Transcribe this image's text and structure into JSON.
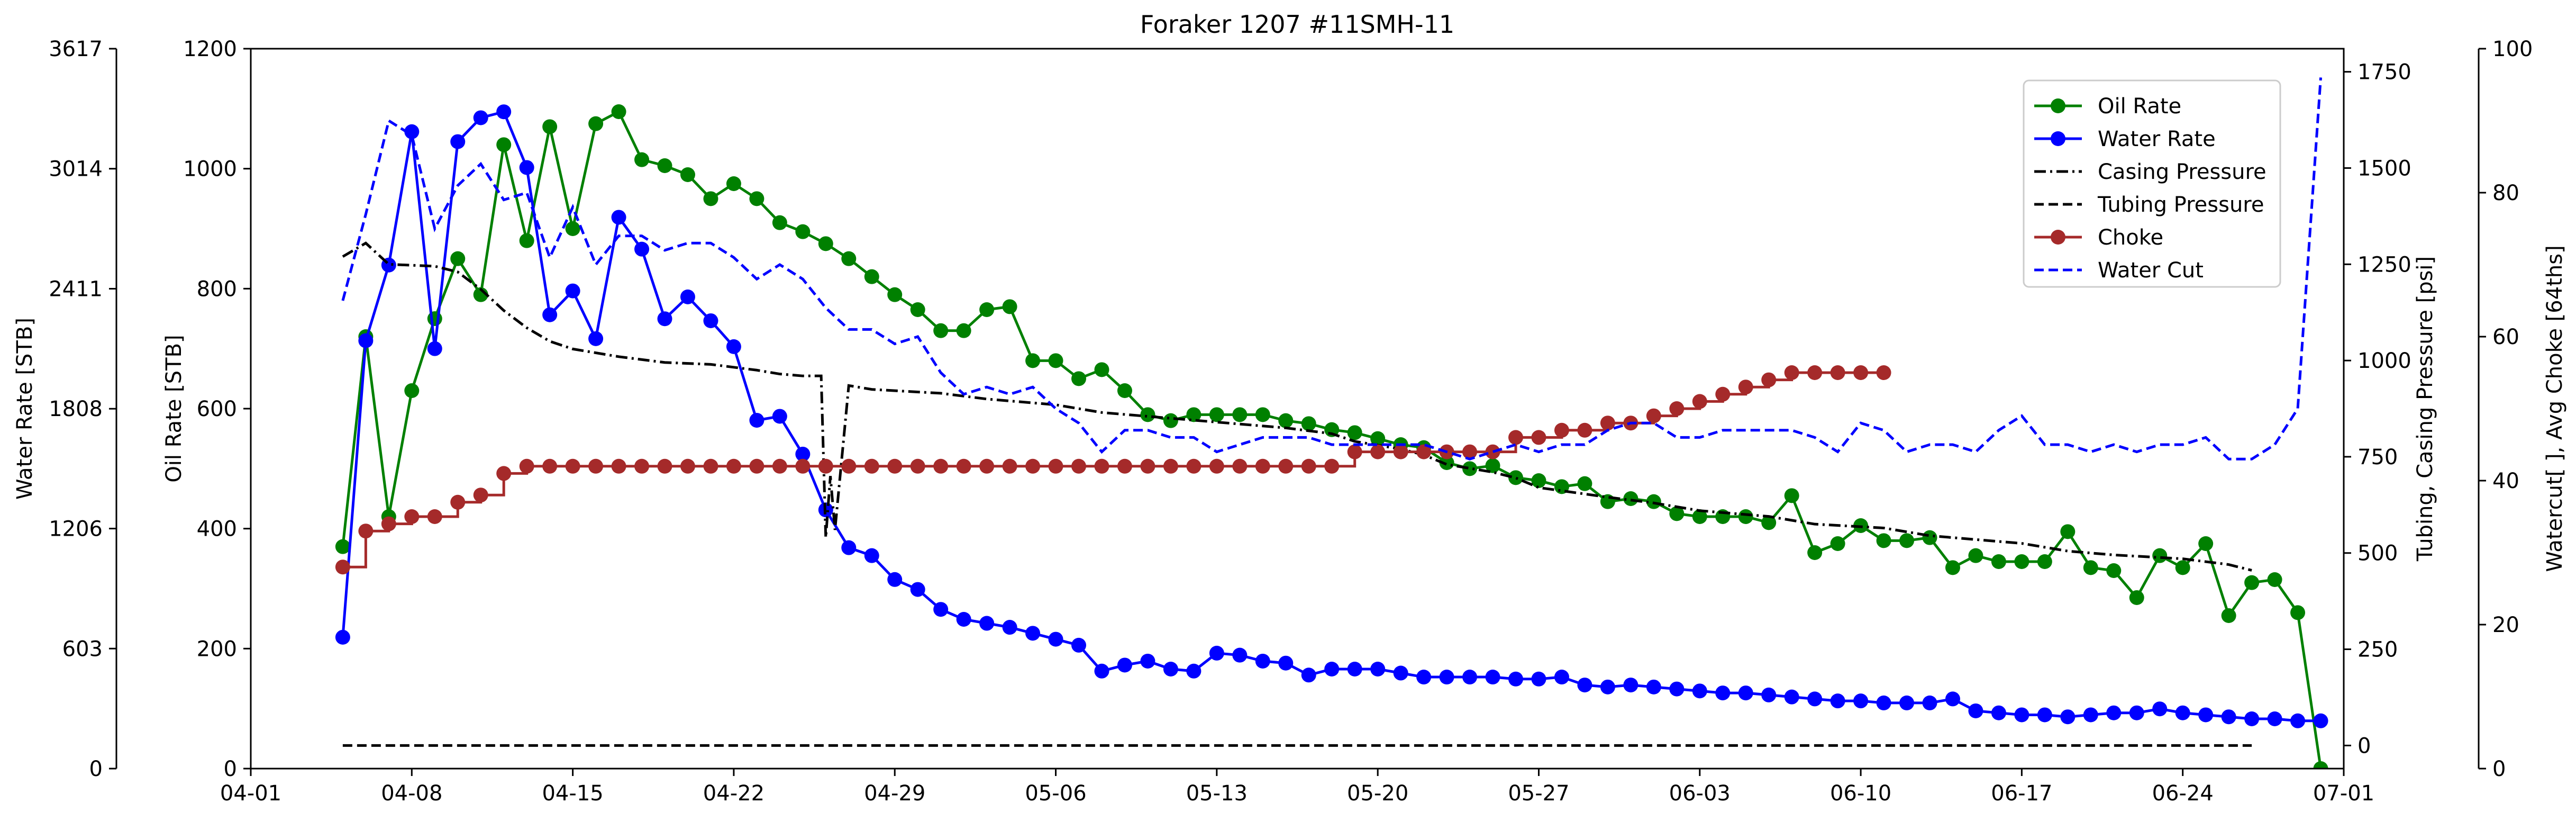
{
  "chart_data": {
    "type": "line",
    "title": "Foraker 1207 #11SMH-11",
    "x_axis": {
      "start": "2019-04-01",
      "end": "2019-07-01",
      "tick_dates": [
        "2019-04-01",
        "2019-04-08",
        "2019-04-15",
        "2019-04-22",
        "2019-04-29",
        "2019-05-06",
        "2019-05-13",
        "2019-05-20",
        "2019-05-27",
        "2019-06-03",
        "2019-06-10",
        "2019-06-17",
        "2019-06-24",
        "2019-07-01"
      ],
      "tick_labels": [
        "04-01",
        "04-08",
        "04-15",
        "04-22",
        "04-29",
        "05-06",
        "05-13",
        "05-20",
        "05-27",
        "06-03",
        "06-10",
        "06-17",
        "06-24",
        "07-01"
      ]
    },
    "axes": {
      "water_rate": {
        "label": "Water Rate [STB]",
        "ylim": [
          0,
          3617
        ],
        "ticks": [
          "0",
          "603",
          "1206",
          "1808",
          "2411",
          "3014",
          "3617"
        ]
      },
      "oil_rate": {
        "label": "Oil Rate [STB]",
        "ylim": [
          0,
          1200
        ],
        "ticks": [
          "0",
          "200",
          "400",
          "600",
          "800",
          "1000",
          "1200"
        ]
      },
      "pressure": {
        "label": "Tubing, Casing Pressure [psi]",
        "ylim": [
          -60,
          1810
        ],
        "ticks": [
          "0",
          "250",
          "500",
          "750",
          "1000",
          "1250",
          "1500",
          "1750"
        ]
      },
      "watercut_choke": {
        "label": "Watercut[ ], Avg Choke [64ths]",
        "ylim": [
          0,
          100
        ],
        "ticks": [
          "0",
          "20",
          "40",
          "60",
          "80",
          "100"
        ]
      }
    },
    "legend": {
      "position": "top-right",
      "entries": [
        "Oil Rate",
        "Water Rate",
        "Casing Pressure",
        "Tubing Pressure",
        "Choke",
        "Water Cut"
      ]
    },
    "colors": {
      "oil": "#008000",
      "water": "#0000ff",
      "pressure": "#000000",
      "choke": "#a52a2a",
      "water_cut": "#0000ff"
    },
    "series": [
      {
        "name": "Oil Rate",
        "axis": "oil_rate",
        "style": "solid-marker",
        "color": "#008000",
        "start": "2019-04-05",
        "values": [
          370,
          720,
          420,
          630,
          750,
          850,
          790,
          1040,
          880,
          1070,
          900,
          1075,
          1095,
          1015,
          1005,
          990,
          950,
          975,
          950,
          910,
          895,
          875,
          850,
          820,
          790,
          765,
          730,
          730,
          765,
          770,
          680,
          680,
          650,
          665,
          630,
          590,
          580,
          590,
          590,
          590,
          590,
          580,
          575,
          565,
          560,
          550,
          540,
          535,
          510,
          500,
          505,
          485,
          480,
          470,
          475,
          445,
          450,
          445,
          425,
          420,
          420,
          420,
          410,
          455,
          360,
          375,
          405,
          380,
          380,
          385,
          335,
          355,
          345,
          345,
          345,
          395,
          335,
          330,
          285,
          355,
          335,
          375,
          255,
          310,
          315,
          260,
          0
        ]
      },
      {
        "name": "Water Rate",
        "axis": "water_rate",
        "style": "solid-marker",
        "color": "#0000ff",
        "start": "2019-04-05",
        "values": [
          660,
          2150,
          2530,
          3200,
          2110,
          3150,
          3270,
          3300,
          3020,
          2280,
          2400,
          2160,
          2770,
          2610,
          2260,
          2370,
          2250,
          2120,
          1750,
          1770,
          1580,
          1300,
          1110,
          1070,
          950,
          900,
          800,
          750,
          730,
          710,
          680,
          650,
          620,
          490,
          520,
          540,
          500,
          490,
          580,
          570,
          540,
          530,
          470,
          500,
          500,
          500,
          480,
          460,
          460,
          460,
          460,
          450,
          450,
          460,
          420,
          410,
          420,
          410,
          400,
          390,
          380,
          380,
          370,
          360,
          350,
          340,
          340,
          330,
          330,
          330,
          350,
          290,
          280,
          270,
          270,
          260,
          270,
          280,
          280,
          300,
          280,
          270,
          260,
          250,
          250,
          240,
          240
        ]
      },
      {
        "name": "Casing Pressure",
        "axis": "pressure",
        "style": "dashdot",
        "color": "#000000",
        "points": [
          [
            "2019-04-05",
            1270
          ],
          [
            "2019-04-06",
            1305
          ],
          [
            "2019-04-07",
            1250
          ],
          [
            "2019-04-09",
            1245
          ],
          [
            "2019-04-10",
            1230
          ],
          [
            "2019-04-11",
            1185
          ],
          [
            "2019-04-12",
            1130
          ],
          [
            "2019-04-13",
            1085
          ],
          [
            "2019-04-14",
            1050
          ],
          [
            "2019-04-15",
            1030
          ],
          [
            "2019-04-17",
            1010
          ],
          [
            "2019-04-19",
            995
          ],
          [
            "2019-04-21",
            990
          ],
          [
            "2019-04-23",
            975
          ],
          [
            "2019-04-24",
            965
          ],
          [
            "2019-04-25",
            960
          ],
          [
            "2019-04-25.8",
            960
          ],
          [
            "2019-04-26",
            540
          ],
          [
            "2019-04-26.2",
            700
          ],
          [
            "2019-04-26.4",
            560
          ],
          [
            "2019-04-27",
            935
          ],
          [
            "2019-04-28",
            925
          ],
          [
            "2019-05-01",
            915
          ],
          [
            "2019-05-03",
            900
          ],
          [
            "2019-05-06",
            885
          ],
          [
            "2019-05-08",
            865
          ],
          [
            "2019-05-10",
            855
          ],
          [
            "2019-05-12",
            845
          ],
          [
            "2019-05-14",
            835
          ],
          [
            "2019-05-16",
            825
          ],
          [
            "2019-05-18",
            810
          ],
          [
            "2019-05-19",
            790
          ],
          [
            "2019-05-21",
            770
          ],
          [
            "2019-05-22",
            755
          ],
          [
            "2019-05-23",
            730
          ],
          [
            "2019-05-25",
            710
          ],
          [
            "2019-05-26",
            695
          ],
          [
            "2019-05-27",
            670
          ],
          [
            "2019-05-30",
            645
          ],
          [
            "2019-06-01",
            630
          ],
          [
            "2019-06-03",
            610
          ],
          [
            "2019-06-06",
            595
          ],
          [
            "2019-06-08",
            575
          ],
          [
            "2019-06-11",
            565
          ],
          [
            "2019-06-13",
            545
          ],
          [
            "2019-06-15",
            535
          ],
          [
            "2019-06-17",
            525
          ],
          [
            "2019-06-19",
            505
          ],
          [
            "2019-06-21",
            495
          ],
          [
            "2019-06-24",
            485
          ],
          [
            "2019-06-26",
            470
          ],
          [
            "2019-06-27",
            455
          ]
        ]
      },
      {
        "name": "Tubing Pressure",
        "axis": "pressure",
        "style": "dashed",
        "color": "#000000",
        "points": [
          [
            "2019-04-05",
            0
          ],
          [
            "2019-06-27",
            0
          ]
        ]
      },
      {
        "name": "Choke",
        "axis": "watercut_choke",
        "style": "step-marker",
        "color": "#a52a2a",
        "start": "2019-04-05",
        "values": [
          28,
          33,
          34,
          35,
          35,
          37,
          38,
          41,
          42,
          42,
          42,
          42,
          42,
          42,
          42,
          42,
          42,
          42,
          42,
          42,
          42,
          42,
          42,
          42,
          42,
          42,
          42,
          42,
          42,
          42,
          42,
          42,
          42,
          42,
          42,
          42,
          42,
          42,
          42,
          42,
          42,
          42,
          42,
          42,
          44,
          44,
          44,
          44,
          44,
          44,
          44,
          46,
          46,
          47,
          47,
          48,
          48,
          49,
          50,
          51,
          52,
          53,
          54,
          55,
          55,
          55,
          55,
          55
        ]
      },
      {
        "name": "Water Cut",
        "axis": "watercut_choke",
        "style": "dashed",
        "color": "#0000ff",
        "start": "2019-04-05",
        "values": [
          65,
          77,
          90,
          88,
          75,
          81,
          84,
          79,
          80,
          71,
          78,
          70,
          74,
          74,
          72,
          73,
          73,
          71,
          68,
          70,
          68,
          64,
          61,
          61,
          59,
          60,
          55,
          52,
          53,
          52,
          53,
          50,
          48,
          44,
          47,
          47,
          46,
          46,
          44,
          45,
          46,
          46,
          46,
          45,
          45,
          45,
          45,
          45,
          44,
          43,
          44,
          45,
          44,
          45,
          45,
          47,
          48,
          48,
          46,
          46,
          47,
          47,
          47,
          47,
          46,
          44,
          48,
          47,
          44,
          45,
          45,
          44,
          47,
          49,
          45,
          45,
          44,
          45,
          44,
          45,
          45,
          46,
          43,
          43,
          45,
          50,
          96
        ]
      }
    ]
  }
}
